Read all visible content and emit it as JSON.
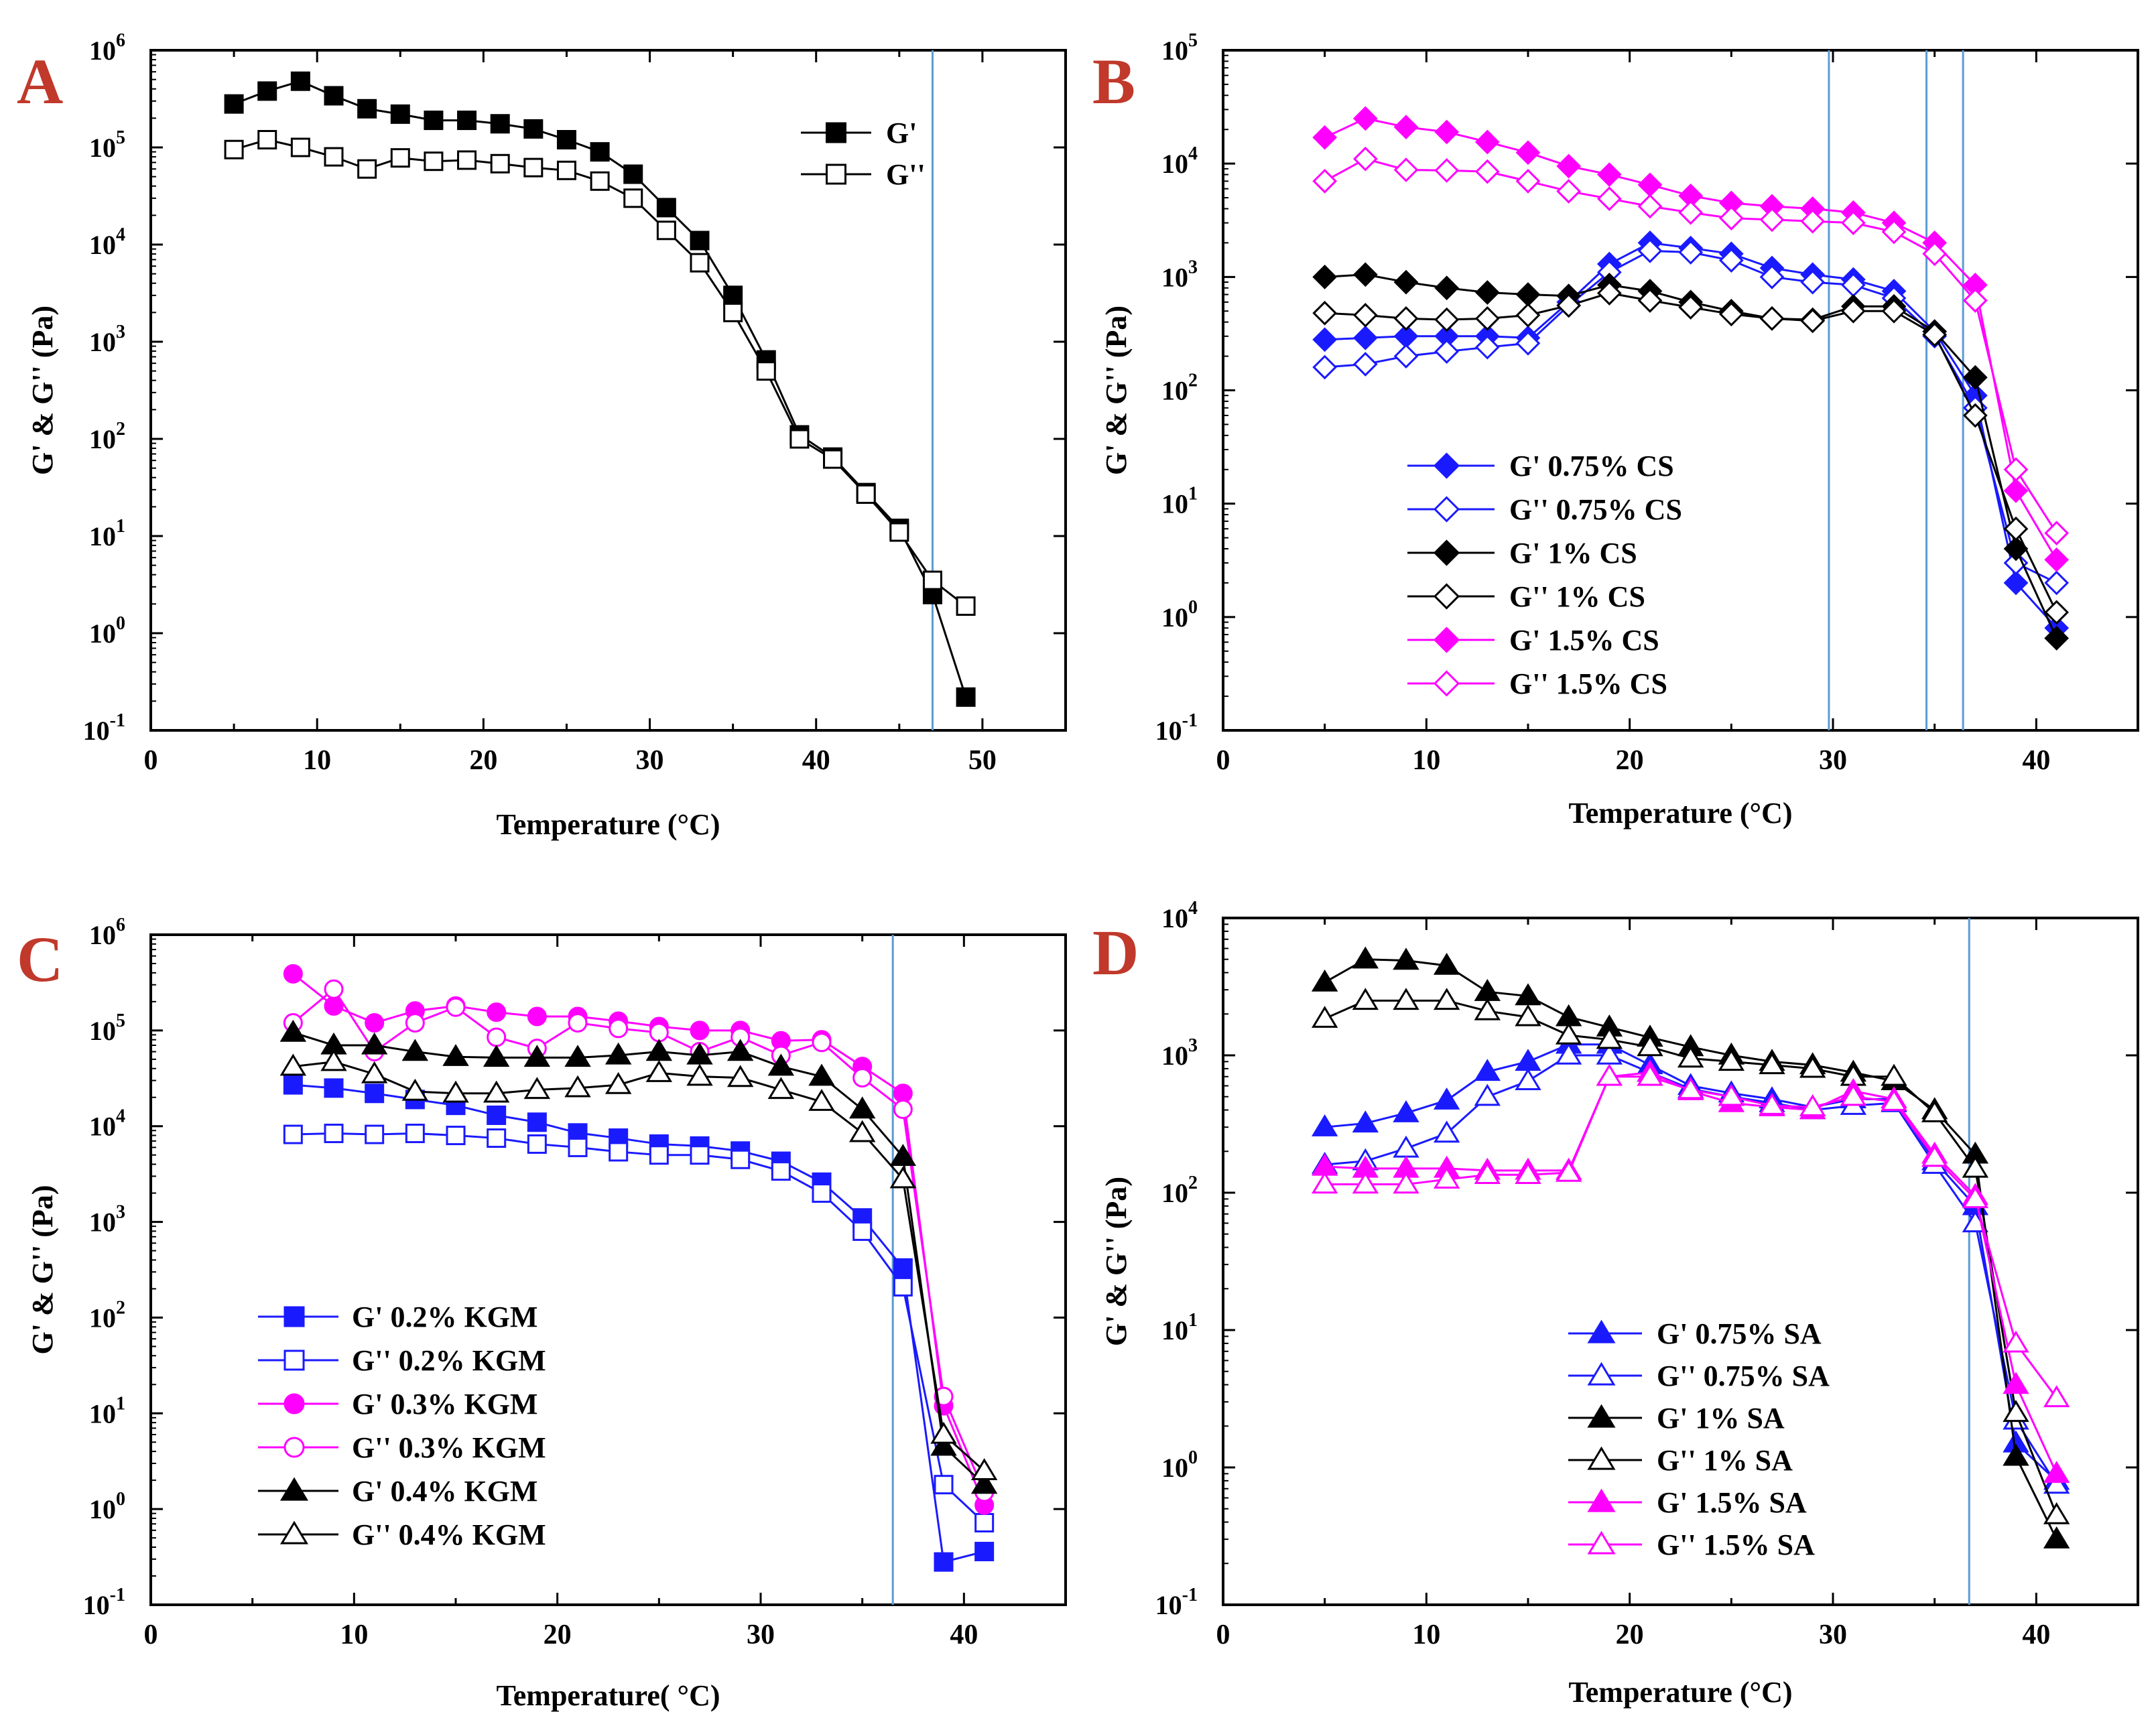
{
  "colors": {
    "red_label": "#c0392b",
    "blue": "#1a1aff",
    "black": "#000000",
    "magenta": "#ff00ff",
    "vline": "#5b9bd5"
  },
  "chart_data": [
    {
      "panel": "A",
      "type": "line",
      "ylabel": "G' & G'' (Pa)",
      "xlabel": "Temperature (°C)",
      "xlim": [
        0,
        55
      ],
      "xticks": [
        0,
        10,
        20,
        30,
        40,
        50
      ],
      "ylim_exp": [
        -1,
        6
      ],
      "vlines": [
        47
      ],
      "series": [
        {
          "name": "G'",
          "color": "#000000",
          "marker": "square",
          "filled": true,
          "x": [
            5,
            7,
            9,
            11,
            13,
            15,
            17,
            19,
            21,
            23,
            25,
            27,
            29,
            31,
            33,
            35,
            37,
            39,
            41,
            43,
            45,
            47,
            49
          ],
          "y": [
            280000,
            380000,
            480000,
            340000,
            250000,
            220000,
            190000,
            190000,
            175000,
            155000,
            120000,
            90000,
            53000,
            24000,
            11000,
            3000,
            650,
            110,
            65,
            28,
            12,
            2.5,
            0.22
          ]
        },
        {
          "name": "G''",
          "color": "#000000",
          "marker": "square",
          "filled": false,
          "x": [
            5,
            7,
            9,
            11,
            13,
            15,
            17,
            19,
            21,
            23,
            25,
            27,
            29,
            31,
            33,
            35,
            37,
            39,
            41,
            43,
            45,
            47,
            49
          ],
          "y": [
            95000,
            120000,
            100000,
            80000,
            60000,
            78000,
            72000,
            74000,
            68000,
            62000,
            58000,
            45000,
            30000,
            14000,
            6500,
            2000,
            500,
            100,
            62,
            27,
            11,
            3.5,
            1.9
          ]
        }
      ]
    },
    {
      "panel": "B",
      "type": "line",
      "ylabel": "G' & G'' (Pa)",
      "xlabel": "Temperature (°C)",
      "xlim": [
        0,
        45
      ],
      "xticks": [
        0,
        10,
        20,
        30,
        40
      ],
      "ylim_exp": [
        -1,
        5
      ],
      "vlines": [
        29.8,
        34.6,
        36.4
      ],
      "series": [
        {
          "name": "G'  0.75% CS",
          "color": "#1a1aff",
          "marker": "diamond",
          "filled": true,
          "x": [
            5,
            7,
            9,
            11,
            13,
            15,
            17,
            19,
            21,
            23,
            25,
            27,
            29,
            31,
            33,
            35,
            37,
            39,
            41
          ],
          "y": [
            280,
            290,
            300,
            300,
            300,
            290,
            600,
            1300,
            2000,
            1800,
            1600,
            1200,
            1050,
            950,
            750,
            330,
            90,
            2,
            0.8
          ]
        },
        {
          "name": "G''  0.75% CS",
          "color": "#1a1aff",
          "marker": "diamond",
          "filled": false,
          "x": [
            5,
            7,
            9,
            11,
            13,
            15,
            17,
            19,
            21,
            23,
            25,
            27,
            29,
            31,
            33,
            35,
            37,
            39,
            41
          ],
          "y": [
            160,
            170,
            200,
            220,
            240,
            260,
            560,
            1100,
            1700,
            1650,
            1400,
            1000,
            900,
            850,
            650,
            300,
            70,
            3,
            2
          ]
        },
        {
          "name": "G'  1% CS",
          "color": "#000000",
          "marker": "diamond",
          "filled": true,
          "x": [
            5,
            7,
            9,
            11,
            13,
            15,
            17,
            19,
            21,
            23,
            25,
            27,
            29,
            31,
            33,
            35,
            37,
            39,
            41
          ],
          "y": [
            1000,
            1050,
            900,
            800,
            730,
            700,
            680,
            850,
            750,
            600,
            500,
            430,
            420,
            550,
            550,
            330,
            130,
            4,
            0.65
          ]
        },
        {
          "name": "G''  1% CS",
          "color": "#000000",
          "marker": "diamond",
          "filled": false,
          "x": [
            5,
            7,
            9,
            11,
            13,
            15,
            17,
            19,
            21,
            23,
            25,
            27,
            29,
            31,
            33,
            35,
            37,
            39,
            41
          ],
          "y": [
            480,
            460,
            430,
            420,
            430,
            460,
            560,
            720,
            620,
            540,
            470,
            430,
            410,
            500,
            500,
            310,
            60,
            6,
            1.1
          ]
        },
        {
          "name": "G'  1.5% CS",
          "color": "#ff00ff",
          "marker": "diamond",
          "filled": true,
          "x": [
            5,
            7,
            9,
            11,
            13,
            15,
            17,
            19,
            21,
            23,
            25,
            27,
            29,
            31,
            33,
            35,
            37,
            39,
            41
          ],
          "y": [
            17000,
            25000,
            21000,
            19000,
            15500,
            12500,
            9500,
            8000,
            6500,
            5200,
            4500,
            4200,
            4000,
            3700,
            3000,
            2000,
            850,
            13,
            3.2
          ]
        },
        {
          "name": "G''  1.5% CS",
          "color": "#ff00ff",
          "marker": "diamond",
          "filled": false,
          "x": [
            5,
            7,
            9,
            11,
            13,
            15,
            17,
            19,
            21,
            23,
            25,
            27,
            29,
            31,
            33,
            35,
            37,
            39,
            41
          ],
          "y": [
            7000,
            11000,
            8800,
            8700,
            8500,
            7000,
            5700,
            4900,
            4200,
            3700,
            3300,
            3200,
            3100,
            3000,
            2500,
            1600,
            620,
            20,
            5.5
          ]
        }
      ]
    },
    {
      "panel": "C",
      "type": "line",
      "ylabel": "G' & G'' (Pa)",
      "xlabel": "Temperature( °C)",
      "xlim": [
        0,
        45
      ],
      "xticks": [
        0,
        10,
        20,
        30,
        40
      ],
      "ylim_exp": [
        -1,
        6
      ],
      "vlines": [
        36.5
      ],
      "series": [
        {
          "name": "G'  0.2% KGM",
          "color": "#1a1aff",
          "marker": "square",
          "filled": true,
          "x": [
            7,
            9,
            11,
            13,
            15,
            17,
            19,
            21,
            23,
            25,
            27,
            29,
            31,
            33,
            35,
            37,
            39,
            41
          ],
          "y": [
            27000,
            25000,
            22000,
            19000,
            16500,
            13000,
            11000,
            8500,
            7500,
            6500,
            6200,
            5500,
            4300,
            2600,
            1100,
            330,
            0.28,
            0.36
          ]
        },
        {
          "name": "G''  0.2% KGM",
          "color": "#1a1aff",
          "marker": "square",
          "filled": false,
          "x": [
            7,
            9,
            11,
            13,
            15,
            17,
            19,
            21,
            23,
            25,
            27,
            29,
            31,
            33,
            35,
            37,
            39,
            41
          ],
          "y": [
            8200,
            8400,
            8200,
            8400,
            8000,
            7500,
            6500,
            6000,
            5400,
            5000,
            5000,
            4500,
            3400,
            2000,
            800,
            210,
            1.8,
            0.72
          ]
        },
        {
          "name": "G'  0.3% KGM",
          "color": "#ff00ff",
          "marker": "circle",
          "filled": true,
          "x": [
            7,
            9,
            11,
            13,
            15,
            17,
            19,
            21,
            23,
            25,
            27,
            29,
            31,
            33,
            35,
            37,
            39,
            41
          ],
          "y": [
            390000,
            180000,
            120000,
            160000,
            180000,
            155000,
            140000,
            140000,
            125000,
            110000,
            100000,
            100000,
            78000,
            80000,
            42000,
            22000,
            12,
            1.1
          ]
        },
        {
          "name": "G''  0.3% KGM",
          "color": "#ff00ff",
          "marker": "circle",
          "filled": false,
          "x": [
            7,
            9,
            11,
            13,
            15,
            17,
            19,
            21,
            23,
            25,
            27,
            29,
            31,
            33,
            35,
            37,
            39,
            41
          ],
          "y": [
            120000,
            270000,
            60000,
            120000,
            175000,
            85000,
            65000,
            120000,
            105000,
            95000,
            60000,
            85000,
            55000,
            75000,
            32000,
            15000,
            15,
            1.5
          ]
        },
        {
          "name": "G'  0.4% KGM",
          "color": "#000000",
          "marker": "triangle",
          "filled": true,
          "x": [
            7,
            9,
            11,
            13,
            15,
            17,
            19,
            21,
            23,
            25,
            27,
            29,
            31,
            33,
            35,
            37,
            39,
            41
          ],
          "y": [
            95000,
            70000,
            70000,
            60000,
            53000,
            52000,
            52000,
            52000,
            55000,
            60000,
            55000,
            60000,
            42000,
            33000,
            15000,
            4800,
            4.5,
            1.8
          ]
        },
        {
          "name": "G''  0.4% KGM",
          "color": "#000000",
          "marker": "triangle",
          "filled": false,
          "x": [
            7,
            9,
            11,
            13,
            15,
            17,
            19,
            21,
            23,
            25,
            27,
            29,
            31,
            33,
            35,
            37,
            39,
            41
          ],
          "y": [
            42000,
            47000,
            35000,
            23000,
            22000,
            22000,
            24000,
            25000,
            27000,
            36000,
            33000,
            32000,
            24000,
            18000,
            8500,
            2800,
            6,
            2.5
          ]
        }
      ]
    },
    {
      "panel": "D",
      "type": "line",
      "ylabel": "G' & G'' (Pa)",
      "xlabel": "Temperature (°C)",
      "xlim": [
        0,
        45
      ],
      "xticks": [
        0,
        10,
        20,
        30,
        40
      ],
      "ylim_exp": [
        -1,
        4
      ],
      "vlines": [
        36.7
      ],
      "series": [
        {
          "name": "G'  0.75% SA",
          "color": "#1a1aff",
          "marker": "triangle",
          "filled": true,
          "x": [
            5,
            7,
            9,
            11,
            13,
            15,
            17,
            19,
            21,
            23,
            25,
            27,
            29,
            31,
            33,
            35,
            37,
            39,
            41
          ],
          "y": [
            300,
            320,
            380,
            470,
            760,
            900,
            1200,
            1200,
            850,
            600,
            530,
            480,
            420,
            480,
            480,
            170,
            80,
            1.5,
            0.8
          ]
        },
        {
          "name": "G''  0.75% SA",
          "color": "#1a1aff",
          "marker": "triangle",
          "filled": false,
          "x": [
            5,
            7,
            9,
            11,
            13,
            15,
            17,
            19,
            21,
            23,
            25,
            27,
            29,
            31,
            33,
            35,
            37,
            39,
            41
          ],
          "y": [
            160,
            170,
            210,
            270,
            500,
            650,
            1000,
            1000,
            750,
            570,
            500,
            450,
            400,
            430,
            450,
            160,
            60,
            2.2,
            0.75
          ]
        },
        {
          "name": "G'  1% SA",
          "color": "#000000",
          "marker": "triangle",
          "filled": true,
          "x": [
            5,
            7,
            9,
            11,
            13,
            15,
            17,
            19,
            21,
            23,
            25,
            27,
            29,
            31,
            33,
            35,
            37,
            39,
            41
          ],
          "y": [
            3400,
            5000,
            4900,
            4500,
            2900,
            2700,
            1900,
            1600,
            1350,
            1150,
            1000,
            900,
            850,
            750,
            650,
            400,
            190,
            1.2,
            0.3
          ]
        },
        {
          "name": "G''  1% SA",
          "color": "#000000",
          "marker": "triangle",
          "filled": false,
          "x": [
            5,
            7,
            9,
            11,
            13,
            15,
            17,
            19,
            21,
            23,
            25,
            27,
            29,
            31,
            33,
            35,
            37,
            39,
            41
          ],
          "y": [
            1850,
            2500,
            2500,
            2500,
            2100,
            1900,
            1400,
            1300,
            1150,
            950,
            900,
            850,
            800,
            700,
            700,
            380,
            150,
            2.5,
            0.45
          ]
        },
        {
          "name": "G'  1.5% SA",
          "color": "#ff00ff",
          "marker": "triangle",
          "filled": true,
          "x": [
            5,
            7,
            9,
            11,
            13,
            15,
            17,
            19,
            21,
            23,
            25,
            27,
            29,
            31,
            33,
            35,
            37,
            39,
            41
          ],
          "y": [
            155,
            150,
            150,
            150,
            145,
            145,
            145,
            700,
            750,
            550,
            450,
            420,
            400,
            550,
            480,
            190,
            95,
            4,
            0.9
          ]
        },
        {
          "name": "G''  1.5% SA",
          "color": "#ff00ff",
          "marker": "triangle",
          "filled": false,
          "x": [
            5,
            7,
            9,
            11,
            13,
            15,
            17,
            19,
            21,
            23,
            25,
            27,
            29,
            31,
            33,
            35,
            37,
            39,
            41
          ],
          "y": [
            115,
            115,
            115,
            125,
            135,
            135,
            140,
            700,
            700,
            560,
            500,
            430,
            420,
            500,
            460,
            180,
            90,
            8,
            3.2
          ]
        }
      ]
    }
  ]
}
